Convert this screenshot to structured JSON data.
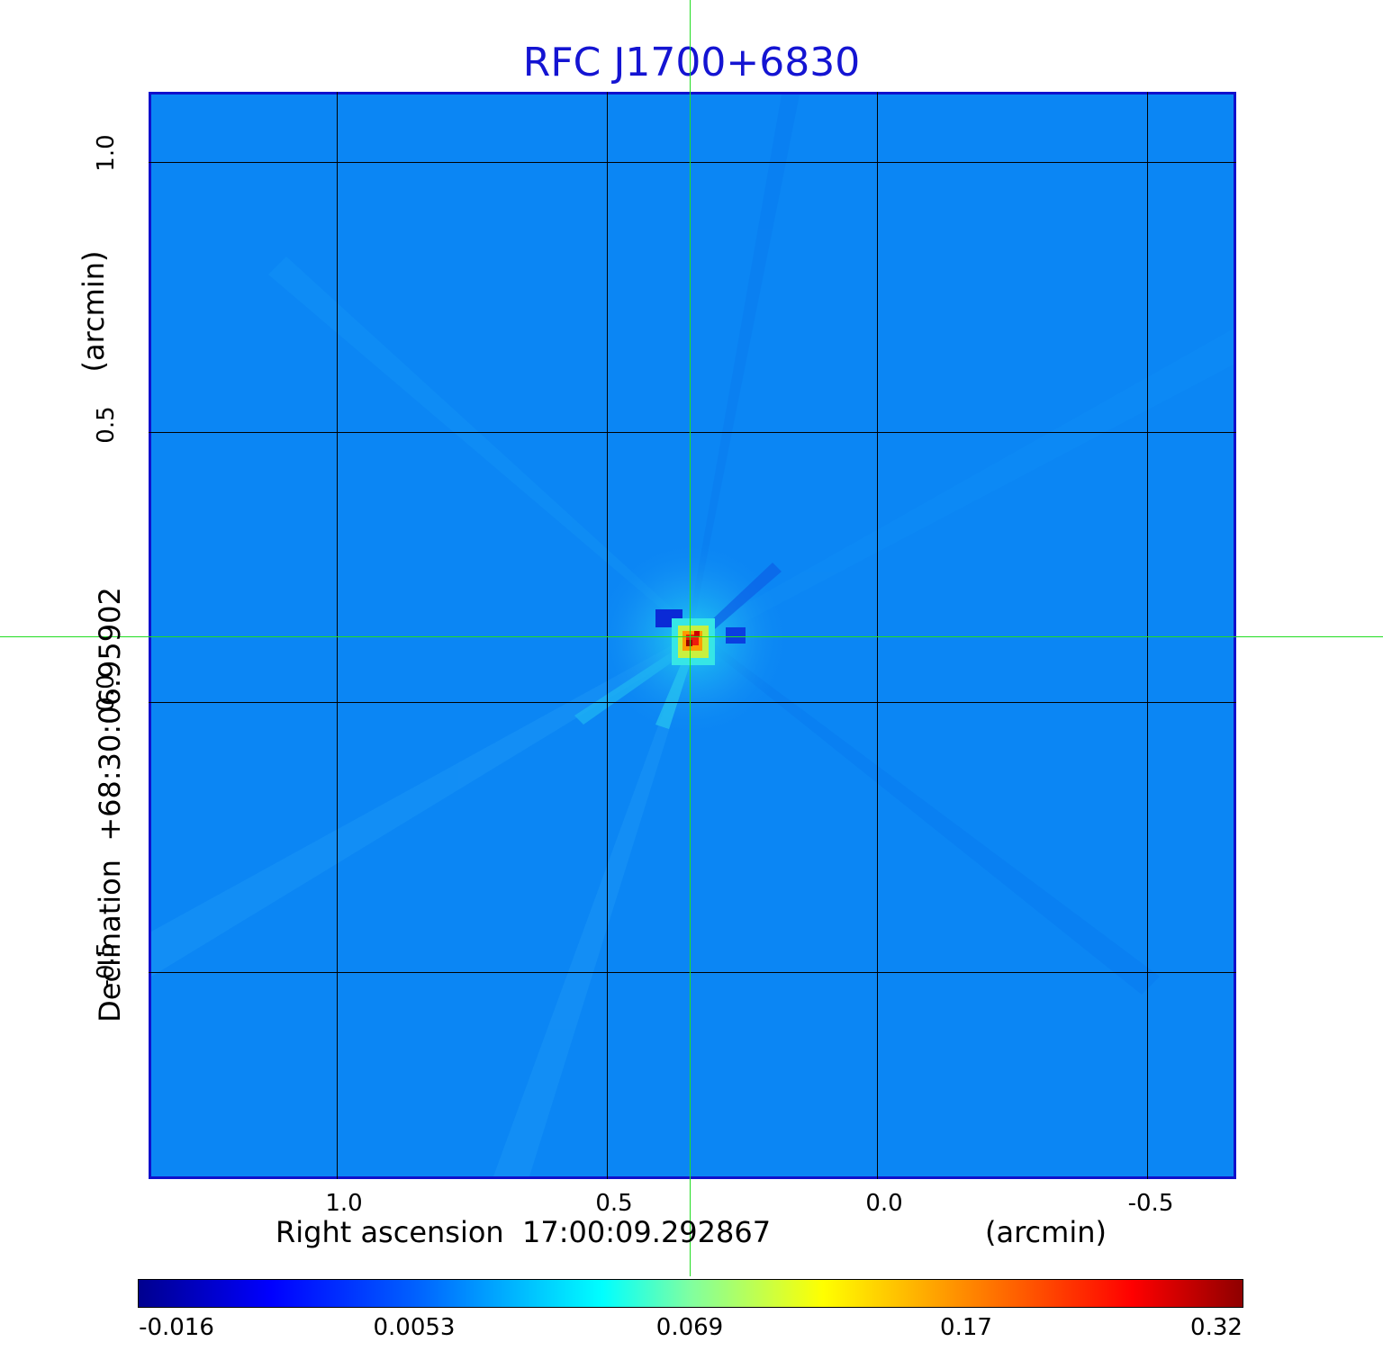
{
  "title": "RFC J1700+6830",
  "x_axis": {
    "label": "Right ascension  17:00:09.292867",
    "unit": "(arcmin)",
    "ticks": [
      "1.0",
      "0.5",
      "0.0",
      "-0.5"
    ]
  },
  "y_axis": {
    "label": "Declination  +68:30:06.95902",
    "unit": "(arcmin)",
    "ticks": [
      "1.0",
      "0.5",
      "0.0",
      "-0.5"
    ]
  },
  "colorbar": {
    "colormap": "jet",
    "ticks": [
      "-0.016",
      "0.0053",
      "0.069",
      "0.17",
      "0.32"
    ]
  },
  "colors": {
    "title": "#1414d2",
    "frame": "#1010cc",
    "crosshair": "#22dd22",
    "background_map": "#0b86f4"
  }
}
